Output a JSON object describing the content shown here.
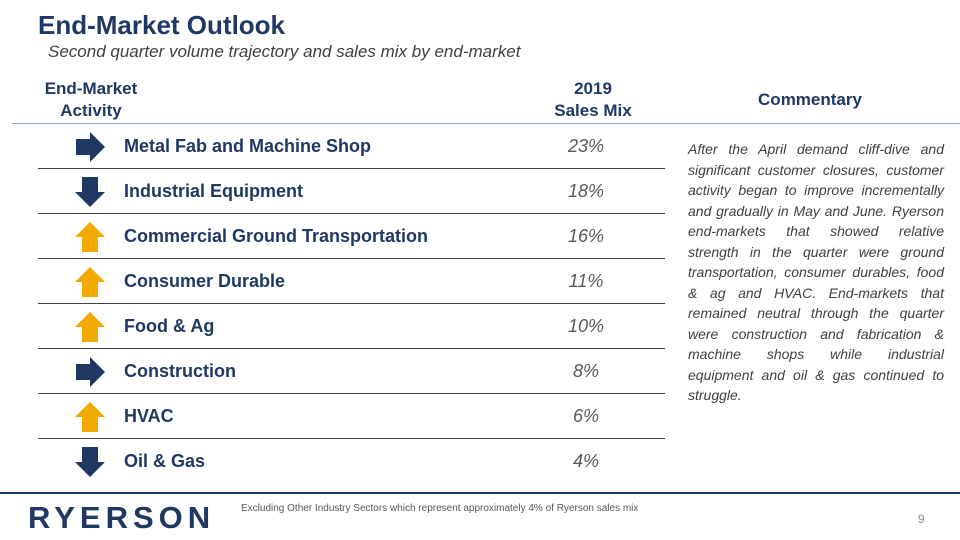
{
  "title": "End-Market Outlook",
  "subtitle": "Second quarter volume trajectory and sales mix by end-market",
  "headers": {
    "activity_line1": "End-Market",
    "activity_line2": "Activity",
    "mix_line1": "2019",
    "mix_line2": "Sales Mix",
    "commentary": "Commentary"
  },
  "colors": {
    "navy": "#1f3864",
    "gold": "#f2a900"
  },
  "rows": [
    {
      "name": "Metal Fab and Machine Shop",
      "mix": "23%",
      "trend_icon": "arrow-right-icon",
      "color": "#1f3864"
    },
    {
      "name": "Industrial Equipment",
      "mix": "18%",
      "trend_icon": "arrow-down-icon",
      "color": "#1f3864"
    },
    {
      "name": "Commercial Ground Transportation",
      "mix": "16%",
      "trend_icon": "arrow-up-icon",
      "color": "#f2a900"
    },
    {
      "name": "Consumer Durable",
      "mix": "11%",
      "trend_icon": "arrow-up-icon",
      "color": "#f2a900"
    },
    {
      "name": "Food & Ag",
      "mix": "10%",
      "trend_icon": "arrow-up-icon",
      "color": "#f2a900"
    },
    {
      "name": "Construction",
      "mix": "8%",
      "trend_icon": "arrow-right-icon",
      "color": "#1f3864"
    },
    {
      "name": "HVAC",
      "mix": "6%",
      "trend_icon": "arrow-up-icon",
      "color": "#f2a900"
    },
    {
      "name": "Oil & Gas",
      "mix": "4%",
      "trend_icon": "arrow-down-icon",
      "color": "#1f3864"
    }
  ],
  "commentary": "After the April demand cliff-dive and significant customer closures, customer activity began to improve incrementally and gradually in May and June. Ryerson end-markets that showed relative strength in the quarter were ground transportation, consumer durables, food & ag and HVAC. End-markets that remained neutral through the quarter were construction and fabrication & machine shops while industrial equipment and oil & gas continued to struggle.",
  "footer": {
    "logo": "RYERSON",
    "note": "Excluding Other Industry Sectors which represent approximately 4% of Ryerson sales mix",
    "page": "9"
  }
}
